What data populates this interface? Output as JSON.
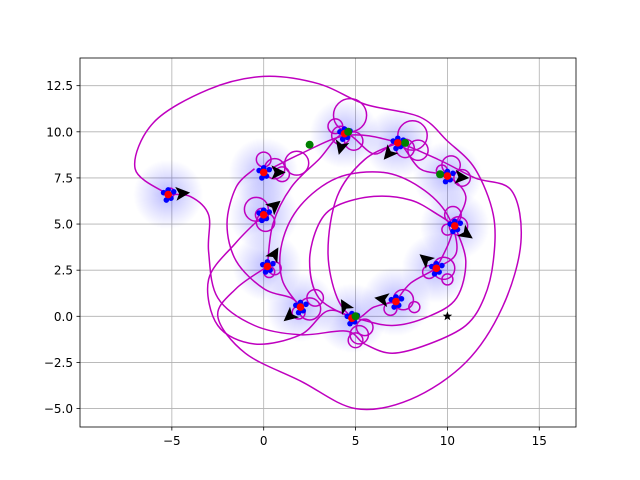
{
  "chart_data": {
    "type": "scatter",
    "title": "",
    "xlabel": "",
    "ylabel": "",
    "xlim": [
      -10,
      17
    ],
    "ylim": [
      -6,
      14
    ],
    "grid": true,
    "xticks": [
      -5,
      0,
      5,
      10,
      15
    ],
    "xtick_labels": [
      "−5",
      "0",
      "5",
      "10",
      "15"
    ],
    "yticks": [
      -5.0,
      -2.5,
      0.0,
      2.5,
      5.0,
      7.5,
      10.0,
      12.5
    ],
    "ytick_labels": [
      "−5.0",
      "−2.5",
      "0.0",
      "2.5",
      "5.0",
      "7.5",
      "10.0",
      "12.5"
    ],
    "colors": {
      "trajectory": "#bf00bf",
      "agent": "#0000ff",
      "current": "#ff0000",
      "start": "#008000",
      "arrow": "#000000",
      "fan": "#0000ff",
      "goal": "#000000"
    },
    "goal_marker": {
      "marker": "star",
      "x": 10,
      "y": 0
    },
    "green_points": [
      {
        "x": 2.5,
        "y": 9.3
      },
      {
        "x": 4.6,
        "y": 10.0
      },
      {
        "x": 7.7,
        "y": 9.4
      },
      {
        "x": 9.6,
        "y": 7.7
      },
      {
        "x": 5.0,
        "y": 0.0
      }
    ],
    "agents": [
      {
        "x": -5.2,
        "y": 6.6,
        "heading": 5
      },
      {
        "x": 0.0,
        "y": 7.8,
        "heading": 0
      },
      {
        "x": 0.0,
        "y": 5.5,
        "heading": 40
      },
      {
        "x": 0.2,
        "y": 2.7,
        "heading": 60
      },
      {
        "x": 2.0,
        "y": 0.5,
        "heading": -140
      },
      {
        "x": 4.8,
        "y": -0.1,
        "heading": 120
      },
      {
        "x": 7.2,
        "y": 0.8,
        "heading": 170
      },
      {
        "x": 9.4,
        "y": 2.6,
        "heading": 140
      },
      {
        "x": 10.4,
        "y": 4.9,
        "heading": -35
      },
      {
        "x": 10.0,
        "y": 7.6,
        "heading": -5
      },
      {
        "x": 7.3,
        "y": 9.4,
        "heading": -130
      },
      {
        "x": 4.4,
        "y": 9.9,
        "heading": -105
      }
    ],
    "trajectories": [
      [
        [
          -5.2,
          6.6
        ],
        [
          -7.0,
          8.0
        ],
        [
          -6.0,
          10.5
        ],
        [
          -3.0,
          12.3
        ],
        [
          0.0,
          13.0
        ],
        [
          3.0,
          12.6
        ],
        [
          5.5,
          11.5
        ],
        [
          8.5,
          10.8
        ],
        [
          10.0,
          9.5
        ],
        [
          11.5,
          8.0
        ],
        [
          12.5,
          5.5
        ],
        [
          12.5,
          3.0
        ],
        [
          12.0,
          1.0
        ],
        [
          11.0,
          -0.5
        ],
        [
          9.0,
          -1.5
        ],
        [
          7.0,
          -2.0
        ],
        [
          5.5,
          -1.5
        ],
        [
          4.5,
          -0.8
        ],
        [
          2.0,
          -1.0
        ],
        [
          -0.5,
          -0.5
        ],
        [
          -2.5,
          1.0
        ],
        [
          -3.0,
          3.5
        ],
        [
          -3.0,
          5.5
        ],
        [
          -4.0,
          6.5
        ],
        [
          -5.2,
          6.6
        ]
      ],
      [
        [
          0.0,
          7.8
        ],
        [
          2.0,
          8.8
        ],
        [
          4.5,
          9.8
        ],
        [
          7.0,
          9.5
        ],
        [
          9.5,
          8.5
        ],
        [
          11.5,
          7.5
        ],
        [
          13.5,
          6.8
        ],
        [
          14.0,
          4.0
        ],
        [
          13.0,
          0.5
        ],
        [
          11.0,
          -2.5
        ],
        [
          8.0,
          -4.5
        ],
        [
          5.0,
          -5.0
        ],
        [
          2.0,
          -3.5
        ],
        [
          -1.0,
          -2.0
        ],
        [
          -2.5,
          0.0
        ],
        [
          -1.5,
          1.5
        ],
        [
          0.2,
          2.7
        ]
      ],
      [
        [
          0.0,
          5.5
        ],
        [
          -1.5,
          4.0
        ],
        [
          -3.0,
          2.0
        ],
        [
          -2.5,
          -0.5
        ],
        [
          -0.5,
          -1.5
        ],
        [
          2.0,
          -1.0
        ],
        [
          3.5,
          0.3
        ],
        [
          5.0,
          -0.1
        ],
        [
          7.0,
          -0.5
        ],
        [
          9.0,
          0.0
        ],
        [
          10.5,
          1.0
        ],
        [
          11.0,
          3.0
        ],
        [
          10.4,
          4.9
        ]
      ],
      [
        [
          0.2,
          2.7
        ],
        [
          0.5,
          5.0
        ],
        [
          1.5,
          7.0
        ],
        [
          3.0,
          8.5
        ],
        [
          4.4,
          9.9
        ],
        [
          6.0,
          8.8
        ],
        [
          7.3,
          9.4
        ],
        [
          8.5,
          8.0
        ],
        [
          10.0,
          7.6
        ],
        [
          11.0,
          6.5
        ],
        [
          10.4,
          4.9
        ],
        [
          10.0,
          3.8
        ],
        [
          9.4,
          2.6
        ]
      ],
      [
        [
          2.0,
          0.5
        ],
        [
          1.0,
          2.0
        ],
        [
          1.0,
          4.0
        ],
        [
          2.0,
          6.0
        ],
        [
          4.0,
          7.5
        ],
        [
          6.5,
          7.8
        ],
        [
          8.5,
          7.0
        ],
        [
          10.0,
          5.5
        ],
        [
          10.5,
          3.5
        ],
        [
          9.4,
          2.6
        ],
        [
          8.0,
          1.8
        ],
        [
          7.2,
          0.8
        ]
      ],
      [
        [
          4.8,
          -0.1
        ],
        [
          3.0,
          1.0
        ],
        [
          2.5,
          3.0
        ],
        [
          3.0,
          5.0
        ],
        [
          4.0,
          6.0
        ],
        [
          6.0,
          6.5
        ],
        [
          8.0,
          6.3
        ],
        [
          9.5,
          5.5
        ],
        [
          10.4,
          4.9
        ]
      ],
      [
        [
          7.2,
          0.8
        ],
        [
          6.0,
          0.5
        ],
        [
          5.0,
          -0.1
        ],
        [
          4.0,
          1.0
        ],
        [
          3.5,
          3.5
        ],
        [
          4.0,
          6.5
        ],
        [
          5.5,
          8.5
        ],
        [
          7.3,
          9.4
        ]
      ],
      [
        [
          -0.5,
          8.0
        ],
        [
          -1.5,
          7.0
        ],
        [
          -2.0,
          5.0
        ],
        [
          -1.5,
          3.0
        ],
        [
          0.0,
          1.5
        ],
        [
          1.5,
          1.0
        ],
        [
          2.0,
          0.5
        ]
      ]
    ],
    "loops": [
      [
        4.7,
        10.9,
        0.9
      ],
      [
        4.2,
        9.8,
        0.5
      ],
      [
        4.9,
        9.5,
        0.5
      ],
      [
        3.9,
        10.3,
        0.4
      ],
      [
        8.1,
        9.8,
        0.8
      ],
      [
        8.4,
        9.0,
        0.55
      ],
      [
        7.7,
        9.1,
        0.5
      ],
      [
        10.2,
        8.2,
        0.5
      ],
      [
        10.8,
        7.5,
        0.45
      ],
      [
        9.7,
        7.9,
        0.3
      ],
      [
        10.3,
        5.5,
        0.45
      ],
      [
        10.6,
        4.9,
        0.5
      ],
      [
        10.0,
        4.7,
        0.3
      ],
      [
        9.8,
        2.6,
        0.6
      ],
      [
        9.0,
        2.4,
        0.35
      ],
      [
        10.0,
        2.0,
        0.3
      ],
      [
        7.6,
        0.9,
        0.55
      ],
      [
        8.2,
        0.5,
        0.3
      ],
      [
        6.9,
        0.4,
        0.35
      ],
      [
        5.2,
        -1.0,
        0.5
      ],
      [
        5.5,
        -0.6,
        0.45
      ],
      [
        5.0,
        -1.3,
        0.4
      ],
      [
        2.5,
        0.4,
        0.6
      ],
      [
        2.8,
        1.0,
        0.45
      ],
      [
        1.9,
        0.2,
        0.35
      ],
      [
        0.6,
        2.6,
        0.35
      ],
      [
        0.3,
        2.4,
        0.3
      ],
      [
        -0.4,
        5.8,
        0.65
      ],
      [
        0.1,
        5.1,
        0.5
      ],
      [
        -0.1,
        5.5,
        0.35
      ],
      [
        0.6,
        8.0,
        0.55
      ],
      [
        1.8,
        8.3,
        0.65
      ],
      [
        0.0,
        8.5,
        0.4
      ],
      [
        1.0,
        7.7,
        0.4
      ],
      [
        -5.1,
        6.7,
        0.25
      ]
    ]
  }
}
